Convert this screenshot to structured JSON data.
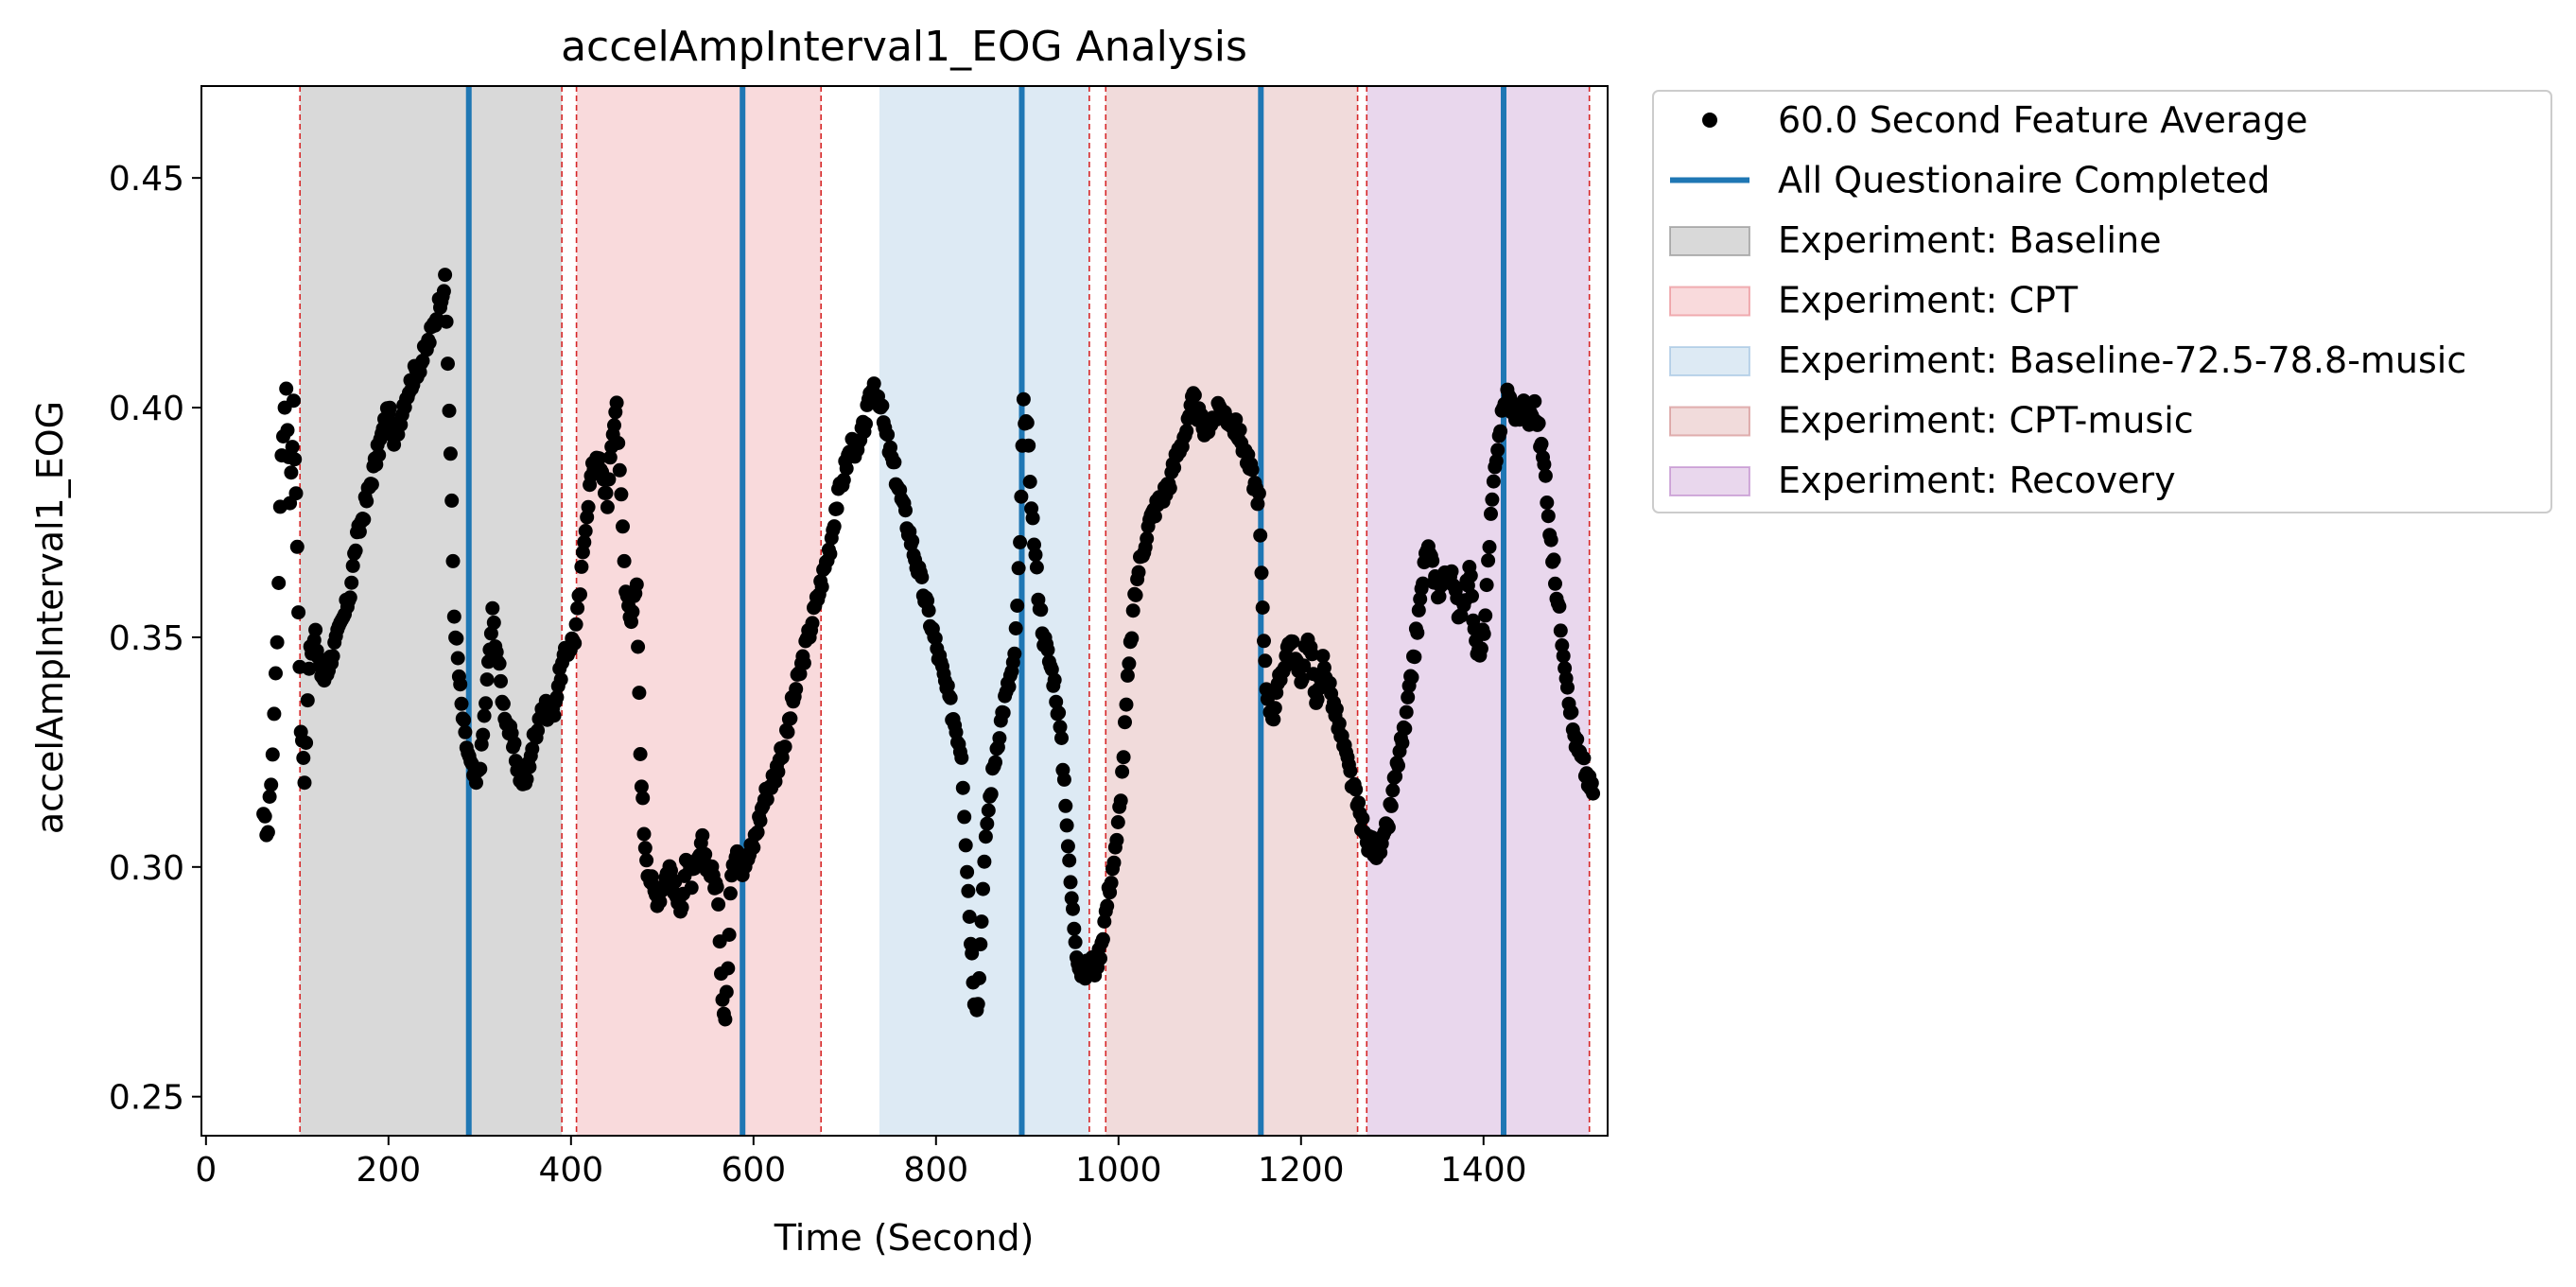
{
  "chart_data": {
    "type": "scatter",
    "title": "accelAmpInterval1_EOG Analysis",
    "xlabel": "Time (Second)",
    "ylabel": "accelAmpInterval1_EOG",
    "xlim": [
      -5,
      1536
    ],
    "ylim": [
      0.2415,
      0.47
    ],
    "xticks": [
      0,
      200,
      400,
      600,
      800,
      1000,
      1200,
      1400
    ],
    "yticks": [
      0.25,
      0.3,
      0.35,
      0.4,
      0.45
    ],
    "ytick_labels": [
      "0.25",
      "0.30",
      "0.35",
      "0.40",
      "0.45"
    ],
    "experiments": [
      {
        "name": "Baseline",
        "label": "Experiment: Baseline",
        "start": 103,
        "end": 390,
        "color": "#808080",
        "alpha": 0.3
      },
      {
        "name": "CPT",
        "label": "Experiment: CPT",
        "start": 406,
        "end": 674,
        "color": "#e66b74",
        "alpha": 0.25
      },
      {
        "name": "Baseline-72.5-78.8-music",
        "label": "Experiment: Baseline-72.5-78.8-music",
        "start": 738,
        "end": 968,
        "color": "#8fb8dc",
        "alpha": 0.3
      },
      {
        "name": "CPT-music",
        "label": "Experiment: CPT-music",
        "start": 986,
        "end": 1262,
        "color": "#c87070",
        "alpha": 0.25
      },
      {
        "name": "Recovery",
        "label": "Experiment: Recovery",
        "start": 1272,
        "end": 1516,
        "color": "#b070c0",
        "alpha": 0.28
      }
    ],
    "red_dashed_lines": [
      103,
      390,
      406,
      674,
      968,
      986,
      1262,
      1272,
      1516
    ],
    "questionnaire_times": [
      288,
      588,
      894,
      1156,
      1422
    ],
    "trajectory": [
      [
        63,
        0.31
      ],
      [
        68,
        0.308
      ],
      [
        73,
        0.325
      ],
      [
        78,
        0.35
      ],
      [
        83,
        0.39
      ],
      [
        88,
        0.405
      ],
      [
        92,
        0.38
      ],
      [
        96,
        0.4
      ],
      [
        100,
        0.37
      ],
      [
        104,
        0.33
      ],
      [
        108,
        0.32
      ],
      [
        113,
        0.345
      ],
      [
        120,
        0.35
      ],
      [
        128,
        0.34
      ],
      [
        136,
        0.345
      ],
      [
        144,
        0.35
      ],
      [
        152,
        0.355
      ],
      [
        158,
        0.36
      ],
      [
        164,
        0.37
      ],
      [
        170,
        0.375
      ],
      [
        176,
        0.38
      ],
      [
        182,
        0.385
      ],
      [
        188,
        0.39
      ],
      [
        194,
        0.395
      ],
      [
        200,
        0.4
      ],
      [
        206,
        0.392
      ],
      [
        212,
        0.397
      ],
      [
        218,
        0.402
      ],
      [
        224,
        0.405
      ],
      [
        230,
        0.408
      ],
      [
        236,
        0.41
      ],
      [
        242,
        0.413
      ],
      [
        248,
        0.417
      ],
      [
        254,
        0.421
      ],
      [
        258,
        0.425
      ],
      [
        262,
        0.427
      ],
      [
        265,
        0.41
      ],
      [
        268,
        0.39
      ],
      [
        272,
        0.355
      ],
      [
        276,
        0.345
      ],
      [
        280,
        0.335
      ],
      [
        284,
        0.328
      ],
      [
        290,
        0.322
      ],
      [
        296,
        0.318
      ],
      [
        302,
        0.325
      ],
      [
        308,
        0.34
      ],
      [
        314,
        0.355
      ],
      [
        320,
        0.345
      ],
      [
        326,
        0.335
      ],
      [
        332,
        0.33
      ],
      [
        338,
        0.325
      ],
      [
        344,
        0.32
      ],
      [
        350,
        0.318
      ],
      [
        356,
        0.325
      ],
      [
        362,
        0.33
      ],
      [
        368,
        0.335
      ],
      [
        374,
        0.334
      ],
      [
        380,
        0.333
      ],
      [
        386,
        0.34
      ],
      [
        392,
        0.345
      ],
      [
        398,
        0.348
      ],
      [
        404,
        0.35
      ],
      [
        410,
        0.36
      ],
      [
        416,
        0.375
      ],
      [
        422,
        0.385
      ],
      [
        428,
        0.39
      ],
      [
        434,
        0.385
      ],
      [
        440,
        0.38
      ],
      [
        446,
        0.395
      ],
      [
        450,
        0.401
      ],
      [
        455,
        0.38
      ],
      [
        460,
        0.36
      ],
      [
        466,
        0.355
      ],
      [
        472,
        0.36
      ],
      [
        476,
        0.325
      ],
      [
        480,
        0.308
      ],
      [
        484,
        0.3
      ],
      [
        490,
        0.295
      ],
      [
        496,
        0.293
      ],
      [
        502,
        0.297
      ],
      [
        508,
        0.3
      ],
      [
        514,
        0.295
      ],
      [
        520,
        0.29
      ],
      [
        526,
        0.302
      ],
      [
        532,
        0.297
      ],
      [
        538,
        0.3
      ],
      [
        544,
        0.305
      ],
      [
        550,
        0.3
      ],
      [
        556,
        0.298
      ],
      [
        560,
        0.295
      ],
      [
        563,
        0.285
      ],
      [
        566,
        0.272
      ],
      [
        569,
        0.268
      ],
      [
        572,
        0.278
      ],
      [
        576,
        0.3
      ],
      [
        582,
        0.305
      ],
      [
        588,
        0.3
      ],
      [
        594,
        0.302
      ],
      [
        600,
        0.305
      ],
      [
        606,
        0.31
      ],
      [
        612,
        0.315
      ],
      [
        618,
        0.318
      ],
      [
        624,
        0.32
      ],
      [
        630,
        0.325
      ],
      [
        636,
        0.328
      ],
      [
        642,
        0.335
      ],
      [
        648,
        0.34
      ],
      [
        654,
        0.345
      ],
      [
        660,
        0.35
      ],
      [
        666,
        0.355
      ],
      [
        672,
        0.36
      ],
      [
        678,
        0.365
      ],
      [
        684,
        0.37
      ],
      [
        690,
        0.378
      ],
      [
        696,
        0.383
      ],
      [
        702,
        0.388
      ],
      [
        708,
        0.392
      ],
      [
        714,
        0.39
      ],
      [
        720,
        0.395
      ],
      [
        726,
        0.4
      ],
      [
        732,
        0.405
      ],
      [
        738,
        0.402
      ],
      [
        744,
        0.395
      ],
      [
        750,
        0.39
      ],
      [
        756,
        0.385
      ],
      [
        762,
        0.38
      ],
      [
        768,
        0.375
      ],
      [
        774,
        0.37
      ],
      [
        780,
        0.365
      ],
      [
        786,
        0.36
      ],
      [
        792,
        0.355
      ],
      [
        798,
        0.35
      ],
      [
        804,
        0.345
      ],
      [
        810,
        0.34
      ],
      [
        816,
        0.335
      ],
      [
        822,
        0.33
      ],
      [
        828,
        0.325
      ],
      [
        834,
        0.3
      ],
      [
        838,
        0.285
      ],
      [
        842,
        0.272
      ],
      [
        846,
        0.27
      ],
      [
        850,
        0.29
      ],
      [
        856,
        0.31
      ],
      [
        862,
        0.32
      ],
      [
        868,
        0.328
      ],
      [
        874,
        0.335
      ],
      [
        880,
        0.34
      ],
      [
        886,
        0.345
      ],
      [
        892,
        0.37
      ],
      [
        896,
        0.4
      ],
      [
        900,
        0.395
      ],
      [
        906,
        0.375
      ],
      [
        912,
        0.36
      ],
      [
        918,
        0.35
      ],
      [
        924,
        0.345
      ],
      [
        930,
        0.34
      ],
      [
        936,
        0.33
      ],
      [
        942,
        0.315
      ],
      [
        946,
        0.3
      ],
      [
        950,
        0.29
      ],
      [
        954,
        0.282
      ],
      [
        958,
        0.278
      ],
      [
        962,
        0.276
      ],
      [
        968,
        0.28
      ],
      [
        974,
        0.278
      ],
      [
        980,
        0.282
      ],
      [
        986,
        0.29
      ],
      [
        992,
        0.298
      ],
      [
        998,
        0.305
      ],
      [
        1004,
        0.32
      ],
      [
        1010,
        0.34
      ],
      [
        1016,
        0.355
      ],
      [
        1022,
        0.365
      ],
      [
        1028,
        0.37
      ],
      [
        1034,
        0.375
      ],
      [
        1040,
        0.378
      ],
      [
        1046,
        0.38
      ],
      [
        1052,
        0.382
      ],
      [
        1058,
        0.385
      ],
      [
        1064,
        0.39
      ],
      [
        1070,
        0.393
      ],
      [
        1076,
        0.396
      ],
      [
        1082,
        0.402
      ],
      [
        1088,
        0.398
      ],
      [
        1094,
        0.395
      ],
      [
        1100,
        0.397
      ],
      [
        1106,
        0.398
      ],
      [
        1112,
        0.4
      ],
      [
        1118,
        0.398
      ],
      [
        1124,
        0.397
      ],
      [
        1130,
        0.395
      ],
      [
        1136,
        0.392
      ],
      [
        1142,
        0.388
      ],
      [
        1148,
        0.384
      ],
      [
        1154,
        0.38
      ],
      [
        1158,
        0.355
      ],
      [
        1162,
        0.34
      ],
      [
        1166,
        0.335
      ],
      [
        1170,
        0.333
      ],
      [
        1176,
        0.34
      ],
      [
        1182,
        0.345
      ],
      [
        1188,
        0.35
      ],
      [
        1194,
        0.345
      ],
      [
        1200,
        0.34
      ],
      [
        1206,
        0.35
      ],
      [
        1212,
        0.345
      ],
      [
        1218,
        0.335
      ],
      [
        1224,
        0.345
      ],
      [
        1230,
        0.34
      ],
      [
        1236,
        0.335
      ],
      [
        1242,
        0.33
      ],
      [
        1248,
        0.325
      ],
      [
        1254,
        0.32
      ],
      [
        1260,
        0.315
      ],
      [
        1266,
        0.31
      ],
      [
        1272,
        0.305
      ],
      [
        1278,
        0.305
      ],
      [
        1284,
        0.303
      ],
      [
        1290,
        0.305
      ],
      [
        1296,
        0.31
      ],
      [
        1302,
        0.318
      ],
      [
        1308,
        0.325
      ],
      [
        1314,
        0.33
      ],
      [
        1320,
        0.34
      ],
      [
        1326,
        0.35
      ],
      [
        1332,
        0.36
      ],
      [
        1338,
        0.37
      ],
      [
        1344,
        0.365
      ],
      [
        1350,
        0.36
      ],
      [
        1356,
        0.362
      ],
      [
        1362,
        0.365
      ],
      [
        1368,
        0.36
      ],
      [
        1374,
        0.355
      ],
      [
        1380,
        0.36
      ],
      [
        1386,
        0.365
      ],
      [
        1390,
        0.35
      ],
      [
        1396,
        0.345
      ],
      [
        1402,
        0.355
      ],
      [
        1408,
        0.375
      ],
      [
        1414,
        0.39
      ],
      [
        1420,
        0.398
      ],
      [
        1426,
        0.403
      ],
      [
        1432,
        0.4
      ],
      [
        1438,
        0.398
      ],
      [
        1444,
        0.4
      ],
      [
        1450,
        0.397
      ],
      [
        1456,
        0.4
      ],
      [
        1462,
        0.393
      ],
      [
        1468,
        0.385
      ],
      [
        1474,
        0.37
      ],
      [
        1480,
        0.36
      ],
      [
        1486,
        0.35
      ],
      [
        1492,
        0.34
      ],
      [
        1498,
        0.33
      ],
      [
        1504,
        0.325
      ],
      [
        1510,
        0.322
      ],
      [
        1516,
        0.318
      ],
      [
        1520,
        0.316
      ]
    ],
    "legend": {
      "placement": "outside-right-top",
      "entries": [
        {
          "kind": "marker",
          "label": "60.0 Second Feature Average",
          "color": "#000000"
        },
        {
          "kind": "line",
          "label": "All Questionaire Completed",
          "color": "#1f77b4"
        },
        {
          "kind": "patch",
          "label": "Experiment: Baseline",
          "color": "#808080",
          "alpha": 0.3
        },
        {
          "kind": "patch",
          "label": "Experiment: CPT",
          "color": "#e66b74",
          "alpha": 0.25
        },
        {
          "kind": "patch",
          "label": "Experiment: Baseline-72.5-78.8-music",
          "color": "#8fb8dc",
          "alpha": 0.3
        },
        {
          "kind": "patch",
          "label": "Experiment: CPT-music",
          "color": "#c87070",
          "alpha": 0.25
        },
        {
          "kind": "patch",
          "label": "Experiment: Recovery",
          "color": "#b070c0",
          "alpha": 0.28
        }
      ]
    }
  }
}
